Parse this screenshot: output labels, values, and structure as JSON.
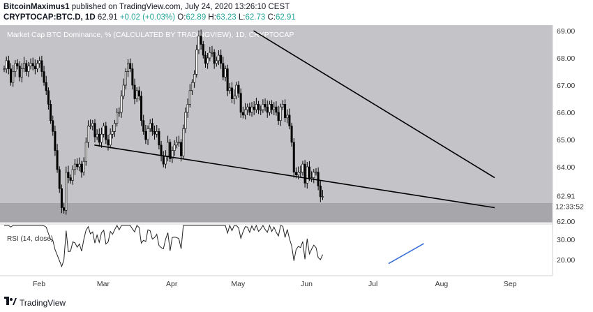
{
  "header": {
    "line1": "BitcoinMaximus1 published on TradingView.com, July 24, 2020 13:26:10 CEST",
    "line1_user": "BitcoinMaximus1",
    "line1_rest": " published on TradingView.com, July 24, 2020 13:26:10 CEST",
    "symbol": "CRYPTOCAP:BTC.D, 1D",
    "last": "62.91",
    "change": "+0.02 (+0.03%)",
    "o_label": "O:",
    "o_val": "62.89",
    "h_label": "H:",
    "h_val": "63.23",
    "l_label": "L:",
    "l_val": "62.73",
    "c_label": "C:",
    "c_val": "62.91",
    "change_color": "#26a69a"
  },
  "chart_data": {
    "type": "candlestick",
    "title": "Market Cap BTC Dominance, % (CALCULATED BY TRADINGVIEW), 1D, CRYPTOCAP",
    "x_ticks": [
      "Feb",
      "Mar",
      "Apr",
      "May",
      "Jun",
      "Jul",
      "Aug",
      "Sep"
    ],
    "y_ticks": [
      "69.00",
      "68.00",
      "67.00",
      "66.00",
      "65.00",
      "64.00",
      "62.00"
    ],
    "ylim": [
      61.8,
      69.1
    ],
    "support_zone": [
      62.0,
      62.7
    ],
    "last_price_label": "62.91",
    "countdown_label": "12:33:52",
    "closes": [
      67.6,
      67.9,
      67.6,
      67.1,
      67.5,
      67.8,
      67.7,
      67.3,
      67.6,
      67.8,
      67.5,
      67.7,
      67.8,
      67.7,
      67.6,
      67.8,
      67.9,
      67.5,
      67.1,
      66.8,
      66.3,
      65.7,
      65.3,
      64.6,
      63.9,
      63.2,
      62.5,
      62.4,
      63.8,
      63.6,
      63.5,
      63.9,
      64.1,
      64.0,
      64.1,
      63.8,
      64.2,
      64.9,
      65.5,
      65.5,
      65.6,
      65.1,
      65.2,
      64.9,
      65.2,
      65.5,
      65.0,
      64.8,
      65.2,
      65.3,
      65.6,
      66.0,
      66.0,
      66.6,
      67.0,
      67.5,
      67.8,
      67.6,
      67.0,
      66.5,
      66.8,
      66.6,
      65.7,
      65.3,
      65.0,
      65.4,
      65.6,
      65.3,
      65.2,
      65.3,
      64.8,
      64.4,
      64.1,
      64.4,
      64.9,
      64.3,
      64.6,
      64.8,
      64.9,
      64.9,
      64.4,
      65.4,
      66.0,
      66.3,
      66.8,
      67.1,
      67.4,
      68.3,
      68.8,
      68.5,
      68.1,
      67.8,
      68.0,
      68.2,
      68.2,
      67.8,
      67.9,
      68.1,
      67.8,
      67.3,
      67.6,
      66.8,
      66.9,
      66.5,
      66.6,
      67.0,
      66.7,
      66.0,
      65.9,
      66.1,
      66.2,
      66.0,
      66.2,
      66.1,
      66.3,
      66.1,
      66.1,
      66.3,
      66.2,
      66.0,
      66.3,
      66.1,
      66.2,
      66.0,
      65.7,
      66.2,
      66.3,
      65.8,
      65.9,
      65.5,
      64.9,
      63.8,
      63.7,
      63.8,
      63.8,
      64.1,
      63.4,
      64.0,
      63.6,
      63.6,
      63.8,
      63.8,
      63.3,
      62.9,
      62.91
    ],
    "trendline_upper": [
      {
        "date": "2020-05-08",
        "price": 69.0
      },
      {
        "date": "2020-08-25",
        "price": 63.6
      }
    ],
    "trendline_lower": [
      {
        "date": "2020-02-26",
        "price": 64.8
      },
      {
        "date": "2020-08-25",
        "price": 62.5
      }
    ],
    "indicator": {
      "name": "RSI (14, close)",
      "y_ticks": [
        "30.00",
        "20.00"
      ],
      "ylim": [
        12,
        37
      ],
      "divergence_line": [
        {
          "date": "2020-07-08",
          "value": 18
        },
        {
          "date": "2020-07-24",
          "value": 28
        }
      ]
    }
  },
  "colors": {
    "candle": "#000000",
    "pane_bg": "#c4c4c8",
    "zone": "#a7a7ab",
    "divergence": "#3a6fd6"
  },
  "footer": {
    "brand": "TradingView"
  }
}
